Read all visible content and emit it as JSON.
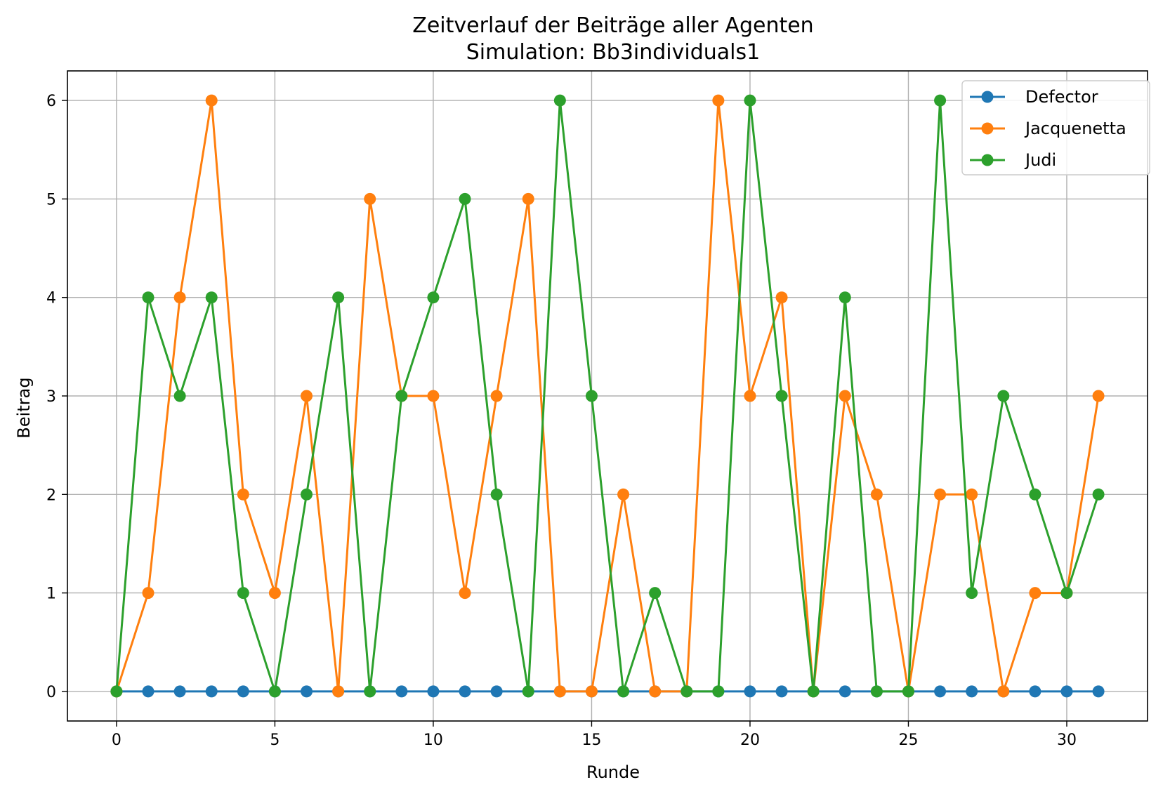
{
  "chart_data": {
    "type": "line",
    "title": "Zeitverlauf der Beiträge aller Agenten",
    "subtitle": "Simulation: Bb3individuals1",
    "xlabel": "Runde",
    "ylabel": "Beitrag",
    "xlim": [
      -1.55,
      32.55
    ],
    "ylim": [
      -0.3,
      6.3
    ],
    "xticks": [
      0,
      5,
      10,
      15,
      20,
      25,
      30
    ],
    "yticks": [
      0,
      1,
      2,
      3,
      4,
      5,
      6
    ],
    "grid": true,
    "legend_position": "top-right",
    "x": [
      0,
      1,
      2,
      3,
      4,
      5,
      6,
      7,
      8,
      9,
      10,
      11,
      12,
      13,
      14,
      15,
      16,
      17,
      18,
      19,
      20,
      21,
      22,
      23,
      24,
      25,
      26,
      27,
      28,
      29,
      30,
      31
    ],
    "series": [
      {
        "name": "Defector",
        "color": "#1f77b4",
        "values": [
          0,
          0,
          0,
          0,
          0,
          0,
          0,
          0,
          0,
          0,
          0,
          0,
          0,
          0,
          0,
          0,
          0,
          0,
          0,
          0,
          0,
          0,
          0,
          0,
          0,
          0,
          0,
          0,
          0,
          0,
          0,
          0
        ]
      },
      {
        "name": "Jacquenetta",
        "color": "#ff7f0e",
        "values": [
          0,
          1,
          4,
          6,
          2,
          1,
          3,
          0,
          5,
          3,
          3,
          1,
          3,
          5,
          0,
          0,
          2,
          0,
          0,
          6,
          3,
          4,
          0,
          3,
          2,
          0,
          2,
          2,
          0,
          1,
          1,
          3
        ]
      },
      {
        "name": "Judi",
        "color": "#2ca02c",
        "values": [
          0,
          4,
          3,
          4,
          1,
          0,
          2,
          4,
          0,
          3,
          4,
          5,
          2,
          0,
          6,
          3,
          0,
          1,
          0,
          0,
          6,
          3,
          0,
          4,
          0,
          0,
          6,
          1,
          3,
          2,
          1,
          2
        ]
      }
    ]
  }
}
